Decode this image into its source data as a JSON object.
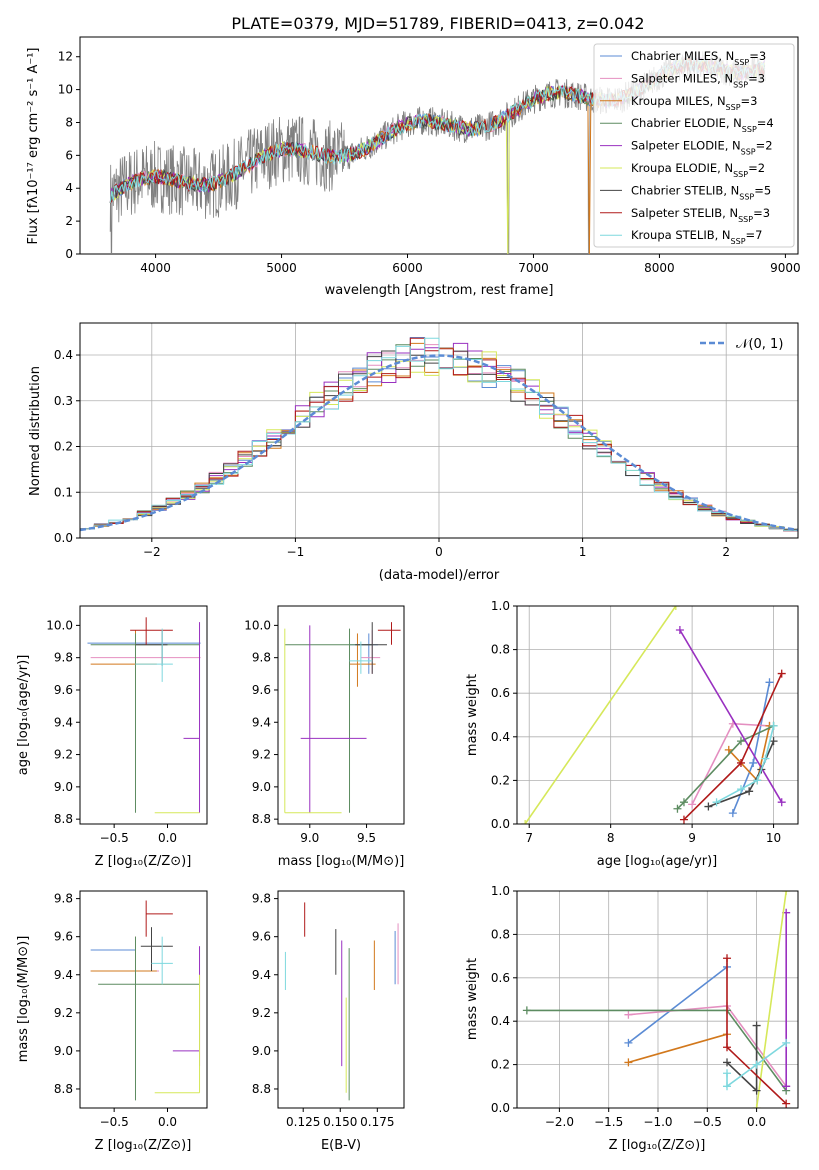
{
  "title": "PLATE=0379, MJD=51789, FIBERID=0413, z=0.042",
  "colors": {
    "spectrum": "#808080",
    "models": [
      "#5b8bd4",
      "#e48fc0",
      "#d2781c",
      "#5d8c61",
      "#9930c0",
      "#d6e85a",
      "#444444",
      "#b01a1a",
      "#7ed8de"
    ],
    "normal_curve": "#5b8bd4"
  },
  "chart_data": [
    {
      "id": "spectrum",
      "type": "line",
      "xlabel": "wavelength [Angstrom, rest frame]",
      "ylabel": "Flux [fλ10⁻¹⁷ erg cm⁻² s⁻¹ A⁻¹]",
      "xlim": [
        3400,
        9100
      ],
      "ylim": [
        0,
        13.2
      ],
      "xticks": [
        "4000",
        "5000",
        "6000",
        "7000",
        "8000",
        "9000"
      ],
      "yticks": [
        "0",
        "2",
        "4",
        "6",
        "8",
        "10",
        "12"
      ],
      "series_wavelength_range": [
        3640,
        8840
      ],
      "legend": [
        {
          "prefix": "Chabrier MILES, N",
          "sub": "SSP",
          "suffix": "=3"
        },
        {
          "prefix": "Salpeter MILES, N",
          "sub": "SSP",
          "suffix": "=3"
        },
        {
          "prefix": "Kroupa MILES, N",
          "sub": "SSP",
          "suffix": "=3"
        },
        {
          "prefix": "Chabrier ELODIE, N",
          "sub": "SSP",
          "suffix": "=4"
        },
        {
          "prefix": "Salpeter ELODIE, N",
          "sub": "SSP",
          "suffix": "=2"
        },
        {
          "prefix": "Kroupa ELODIE, N",
          "sub": "SSP",
          "suffix": "=2"
        },
        {
          "prefix": "Chabrier STELIB, N",
          "sub": "SSP",
          "suffix": "=5"
        },
        {
          "prefix": "Salpeter STELIB, N",
          "sub": "SSP",
          "suffix": "=3"
        },
        {
          "prefix": "Kroupa STELIB, N",
          "sub": "SSP",
          "suffix": "=7"
        }
      ],
      "legend_position": "upper-right"
    },
    {
      "id": "residuals",
      "type": "histogram",
      "xlabel": "(data-model)/error",
      "ylabel": "Normed distribution",
      "xlim": [
        -2.5,
        2.5
      ],
      "ylim": [
        0,
        0.47
      ],
      "xticks": [
        "−2",
        "−1",
        "0",
        "1",
        "2"
      ],
      "yticks": [
        "0.0",
        "0.1",
        "0.2",
        "0.3",
        "0.4"
      ],
      "grid": true,
      "bin_width": 0.1,
      "reference_curve_label": "𝒩(0, 1)",
      "legend_position": "upper-right"
    },
    {
      "id": "age-vs-Z",
      "type": "errorbar",
      "xlabel": "Z [log₁₀(Z/Z⊙)]",
      "ylabel": "age  [log₁₀(age/yr)]",
      "xlim": [
        -0.82,
        0.37
      ],
      "ylim": [
        8.77,
        10.12
      ],
      "xticks": [
        "−0.5",
        "0.0"
      ],
      "yticks": [
        "8.8",
        "9.0",
        "9.2",
        "9.4",
        "9.6",
        "9.8",
        "10.0"
      ],
      "points": [
        {
          "x": -0.3,
          "y": 9.89,
          "xe": [
            -0.75,
            0.31
          ],
          "ye": [
            9.62,
            9.97
          ]
        },
        {
          "x": -0.3,
          "y": 9.8,
          "xe": [
            -0.72,
            0.31
          ],
          "ye": [
            9.62,
            9.97
          ]
        },
        {
          "x": -0.3,
          "y": 9.76,
          "xe": [
            -0.72,
            -0.1
          ],
          "ye": [
            9.6,
            9.97
          ]
        },
        {
          "x": -0.3,
          "y": 9.88,
          "xe": [
            -0.72,
            0.3
          ],
          "ye": [
            8.84,
            9.95
          ]
        },
        {
          "x": 0.3,
          "y": 9.3,
          "xe": [
            0.15,
            0.3
          ],
          "ye": [
            8.84,
            10.02
          ]
        },
        {
          "x": 0.0,
          "y": 8.84,
          "xe": [
            -0.12,
            0.3
          ],
          "ye": [
            8.84,
            8.84
          ]
        },
        {
          "x": -0.05,
          "y": 9.88,
          "xe": [
            -0.3,
            0.0
          ],
          "ye": [
            9.75,
            9.97
          ]
        },
        {
          "x": -0.2,
          "y": 9.97,
          "xe": [
            -0.35,
            0.05
          ],
          "ye": [
            9.88,
            10.05
          ]
        },
        {
          "x": -0.05,
          "y": 9.76,
          "xe": [
            -0.3,
            0.05
          ],
          "ye": [
            9.65,
            9.98
          ]
        }
      ]
    },
    {
      "id": "age-vs-mass",
      "type": "errorbar",
      "xlabel": "mass [log₁₀(M/M⊙)]",
      "ylabel": "",
      "xlim": [
        8.72,
        9.83
      ],
      "ylim": [
        8.77,
        10.12
      ],
      "xticks": [
        "9.0",
        "9.5"
      ],
      "yticks": [
        "8.8",
        "9.0",
        "9.2",
        "9.4",
        "9.6",
        "9.8",
        "10.0"
      ],
      "points": [
        {
          "x": 9.52,
          "y": 9.88,
          "xe": [
            9.35,
            9.6
          ],
          "ye": [
            9.7,
            9.95
          ]
        },
        {
          "x": 9.55,
          "y": 9.8,
          "xe": [
            9.45,
            9.62
          ],
          "ye": [
            9.7,
            9.97
          ]
        },
        {
          "x": 9.42,
          "y": 9.76,
          "xe": [
            9.35,
            9.58
          ],
          "ye": [
            9.62,
            9.95
          ]
        },
        {
          "x": 9.35,
          "y": 9.88,
          "xe": [
            8.78,
            9.55
          ],
          "ye": [
            8.84,
            9.98
          ]
        },
        {
          "x": 9.0,
          "y": 9.3,
          "xe": [
            8.92,
            9.5
          ],
          "ye": [
            8.84,
            10.0
          ]
        },
        {
          "x": 8.78,
          "y": 8.84,
          "xe": [
            8.78,
            9.28
          ],
          "ye": [
            8.84,
            9.98
          ]
        },
        {
          "x": 9.55,
          "y": 9.88,
          "xe": [
            9.4,
            9.68
          ],
          "ye": [
            9.7,
            10.02
          ]
        },
        {
          "x": 9.72,
          "y": 9.97,
          "xe": [
            9.6,
            9.8
          ],
          "ye": [
            9.88,
            10.02
          ]
        },
        {
          "x": 9.45,
          "y": 9.78,
          "xe": [
            9.35,
            9.55
          ],
          "ye": [
            9.7,
            9.9
          ]
        }
      ]
    },
    {
      "id": "massweight-vs-age",
      "type": "line",
      "xlabel": "age  [log₁₀(age/yr)]",
      "ylabel": "mass weight",
      "xlim": [
        6.85,
        10.3
      ],
      "ylim": [
        0,
        1
      ],
      "xticks": [
        "7",
        "8",
        "9",
        "10"
      ],
      "yticks": [
        "0.0",
        "0.2",
        "0.4",
        "0.6",
        "0.8",
        "1.0"
      ],
      "grid": true,
      "series": [
        {
          "points": [
            [
              9.5,
              0.05
            ],
            [
              9.75,
              0.28
            ],
            [
              9.95,
              0.65
            ]
          ]
        },
        {
          "points": [
            [
              9.0,
              0.09
            ],
            [
              9.5,
              0.46
            ],
            [
              9.95,
              0.45
            ]
          ]
        },
        {
          "points": [
            [
              9.45,
              0.34
            ],
            [
              9.8,
              0.2
            ],
            [
              9.95,
              0.45
            ]
          ]
        },
        {
          "points": [
            [
              8.82,
              0.07
            ],
            [
              8.9,
              0.1
            ],
            [
              9.6,
              0.38
            ],
            [
              10.0,
              0.45
            ]
          ]
        },
        {
          "points": [
            [
              8.85,
              0.89
            ],
            [
              10.1,
              0.1
            ]
          ]
        },
        {
          "points": [
            [
              6.95,
              0.0
            ],
            [
              8.8,
              1.0
            ]
          ]
        },
        {
          "points": [
            [
              9.2,
              0.08
            ],
            [
              9.7,
              0.15
            ],
            [
              9.85,
              0.25
            ],
            [
              10.0,
              0.38
            ]
          ]
        },
        {
          "points": [
            [
              8.9,
              0.02
            ],
            [
              9.6,
              0.28
            ],
            [
              10.1,
              0.69
            ]
          ]
        },
        {
          "points": [
            [
              9.3,
              0.1
            ],
            [
              9.6,
              0.16
            ],
            [
              9.8,
              0.2
            ],
            [
              9.9,
              0.3
            ],
            [
              10.0,
              0.45
            ]
          ]
        }
      ]
    },
    {
      "id": "mass-vs-Z",
      "type": "errorbar",
      "xlabel": "Z [log₁₀(Z/Z⊙)]",
      "ylabel": "mass [log₁₀(M/M⊙)]",
      "xlim": [
        -0.82,
        0.37
      ],
      "ylim": [
        8.7,
        9.84
      ],
      "xticks": [
        "−0.5",
        "0.0"
      ],
      "yticks": [
        "8.8",
        "9.0",
        "9.2",
        "9.4",
        "9.6",
        "9.8"
      ],
      "points": [
        {
          "x": -0.3,
          "y": 9.53,
          "xe": [
            -0.72,
            -0.3
          ],
          "ye": [
            9.4,
            9.6
          ]
        },
        {
          "x": -0.3,
          "y": 9.42,
          "xe": [
            -0.72,
            -0.08
          ],
          "ye": [
            9.33,
            9.6
          ]
        },
        {
          "x": -0.3,
          "y": 9.42,
          "xe": [
            -0.72,
            -0.1
          ],
          "ye": [
            9.33,
            9.6
          ]
        },
        {
          "x": -0.3,
          "y": 9.35,
          "xe": [
            -0.65,
            0.3
          ],
          "ye": [
            8.74,
            9.6
          ]
        },
        {
          "x": 0.3,
          "y": 9.0,
          "xe": [
            0.05,
            0.3
          ],
          "ye": [
            8.92,
            9.55
          ]
        },
        {
          "x": 0.3,
          "y": 8.78,
          "xe": [
            -0.12,
            0.3
          ],
          "ye": [
            8.78,
            9.4
          ]
        },
        {
          "x": -0.15,
          "y": 9.55,
          "xe": [
            -0.25,
            0.05
          ],
          "ye": [
            9.42,
            9.65
          ]
        },
        {
          "x": -0.2,
          "y": 9.72,
          "xe": [
            -0.2,
            0.05
          ],
          "ye": [
            9.6,
            9.79
          ]
        },
        {
          "x": -0.05,
          "y": 9.46,
          "xe": [
            -0.15,
            0.05
          ],
          "ye": [
            9.35,
            9.6
          ]
        }
      ]
    },
    {
      "id": "mass-vs-EBV",
      "type": "errorbar",
      "xlabel": "E(B-V)",
      "ylabel": "",
      "xlim": [
        0.108,
        0.193
      ],
      "ylim": [
        8.7,
        9.84
      ],
      "xticks": [
        "0.125",
        "0.150",
        "0.175"
      ],
      "yticks": [
        "8.8",
        "9.0",
        "9.2",
        "9.4",
        "9.6",
        "9.8"
      ],
      "points": [
        {
          "x": 0.187,
          "y": 9.45,
          "xe": [
            0.187,
            0.187
          ],
          "ye": [
            9.35,
            9.63
          ]
        },
        {
          "x": 0.189,
          "y": 9.5,
          "xe": [
            0.189,
            0.189
          ],
          "ye": [
            9.35,
            9.67
          ]
        },
        {
          "x": 0.173,
          "y": 9.45,
          "xe": [
            0.173,
            0.173
          ],
          "ye": [
            9.32,
            9.58
          ]
        },
        {
          "x": 0.156,
          "y": 9.14,
          "xe": [
            0.156,
            0.156
          ],
          "ye": [
            8.74,
            9.54
          ]
        },
        {
          "x": 0.151,
          "y": 9.2,
          "xe": [
            0.151,
            0.151
          ],
          "ye": [
            8.92,
            9.58
          ]
        },
        {
          "x": 0.154,
          "y": 9.0,
          "xe": [
            0.154,
            0.154
          ],
          "ye": [
            8.78,
            9.28
          ]
        },
        {
          "x": 0.147,
          "y": 9.52,
          "xe": [
            0.147,
            0.147
          ],
          "ye": [
            9.4,
            9.64
          ]
        },
        {
          "x": 0.126,
          "y": 9.68,
          "xe": [
            0.126,
            0.126
          ],
          "ye": [
            9.6,
            9.78
          ]
        },
        {
          "x": 0.113,
          "y": 9.42,
          "xe": [
            0.113,
            0.113
          ],
          "ye": [
            9.32,
            9.52
          ]
        }
      ]
    },
    {
      "id": "massweight-vs-Z",
      "type": "line",
      "xlabel": "Z [log₁₀(Z/Z⊙)]",
      "ylabel": "mass weight",
      "xlim": [
        -2.43,
        0.42
      ],
      "ylim": [
        0,
        1
      ],
      "xticks": [
        "−2.0",
        "−1.5",
        "−1.0",
        "−0.5",
        "0.0"
      ],
      "yticks": [
        "0.0",
        "0.2",
        "0.4",
        "0.6",
        "0.8",
        "1.0"
      ],
      "grid": true,
      "series": [
        {
          "points": [
            [
              -1.3,
              0.3
            ],
            [
              -0.3,
              0.65
            ]
          ]
        },
        {
          "points": [
            [
              -1.3,
              0.43
            ],
            [
              -0.3,
              0.47
            ],
            [
              0.3,
              0.1
            ]
          ]
        },
        {
          "points": [
            [
              -1.3,
              0.21
            ],
            [
              -0.3,
              0.34
            ]
          ]
        },
        {
          "points": [
            [
              -2.33,
              0.45
            ],
            [
              -0.3,
              0.45
            ],
            [
              0.3,
              0.08
            ]
          ]
        },
        {
          "points": [
            [
              0.3,
              0.9
            ],
            [
              0.3,
              0.1
            ]
          ]
        },
        {
          "points": [
            [
              0.0,
              0.0
            ],
            [
              0.3,
              1.0
            ]
          ]
        },
        {
          "points": [
            [
              -0.3,
              0.21
            ],
            [
              0.0,
              0.08
            ],
            [
              0.0,
              0.38
            ]
          ]
        },
        {
          "points": [
            [
              -0.3,
              0.69
            ],
            [
              -0.3,
              0.28
            ],
            [
              0.3,
              0.02
            ]
          ]
        },
        {
          "points": [
            [
              -0.3,
              0.16
            ],
            [
              -0.3,
              0.1
            ],
            [
              0.0,
              0.2
            ],
            [
              0.3,
              0.3
            ]
          ]
        }
      ]
    }
  ]
}
